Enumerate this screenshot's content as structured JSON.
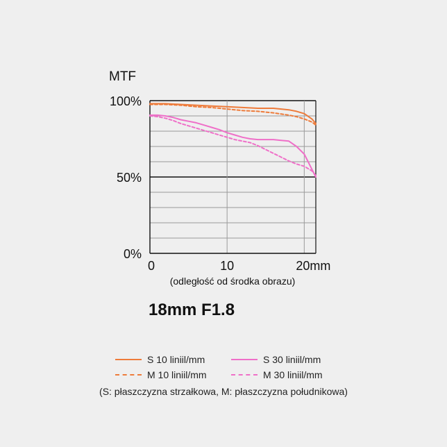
{
  "chart_data": {
    "type": "line",
    "title": "18mm F1.8",
    "ylabel": "MTF",
    "xlabel": "(odległość od środka obrazu)",
    "xlim": [
      0,
      21.5
    ],
    "ylim": [
      0,
      100
    ],
    "x_ticks": [
      "0",
      "10",
      "20mm"
    ],
    "y_ticks": [
      "0%",
      "50%",
      "100%"
    ],
    "grid": true,
    "legend_position": "bottom",
    "series": [
      {
        "name": "S 10 liniil/mm",
        "style": "solid",
        "color": "#ee7b3a",
        "x": [
          0,
          2,
          4,
          6,
          8,
          10,
          12,
          14,
          16,
          17,
          18,
          19,
          20,
          21,
          21.5
        ],
        "y": [
          98,
          98,
          97.5,
          97,
          96.5,
          96,
          95.5,
          95,
          95,
          94.5,
          94,
          93,
          91.5,
          88,
          85
        ]
      },
      {
        "name": "M 10 liniil/mm",
        "style": "dashed",
        "color": "#ee7b3a",
        "x": [
          0,
          2,
          4,
          6,
          8,
          10,
          12,
          14,
          16,
          18,
          19,
          20,
          21,
          21.5
        ],
        "y": [
          97.5,
          97.5,
          97,
          96,
          95.5,
          94.5,
          93.5,
          93,
          92,
          90.5,
          89.5,
          88,
          86,
          84
        ]
      },
      {
        "name": "S 30 liniil/mm",
        "style": "solid",
        "color": "#ef6fc8",
        "x": [
          0,
          1,
          2,
          3,
          4,
          5,
          6,
          7,
          8,
          9,
          10,
          11,
          12,
          13,
          14,
          15,
          16,
          17,
          18,
          19,
          20,
          20.5,
          21,
          21.5
        ],
        "y": [
          90.5,
          90.5,
          90,
          89,
          87.5,
          86.5,
          85.5,
          84,
          82.5,
          81,
          79,
          77.5,
          76,
          75,
          74.5,
          74.5,
          74.5,
          74,
          73.5,
          70,
          65,
          60,
          55,
          50
        ]
      },
      {
        "name": "M 30 liniil/mm",
        "style": "dashed",
        "color": "#ef6fc8",
        "x": [
          0,
          1,
          2,
          3,
          4,
          5,
          6,
          7,
          8,
          9,
          10,
          11,
          12,
          13,
          14,
          15,
          16,
          17,
          18,
          19,
          20,
          21,
          21.5
        ],
        "y": [
          90,
          89.5,
          88.5,
          87,
          85,
          83.5,
          82,
          80.5,
          79,
          77.5,
          76,
          74.5,
          73.5,
          72.5,
          70.5,
          68,
          65.5,
          63,
          60.5,
          58.5,
          57,
          54,
          51
        ]
      }
    ]
  },
  "legend_note": "(S: płaszczyzna strzałkowa, M: płaszczyzna południkowa)"
}
